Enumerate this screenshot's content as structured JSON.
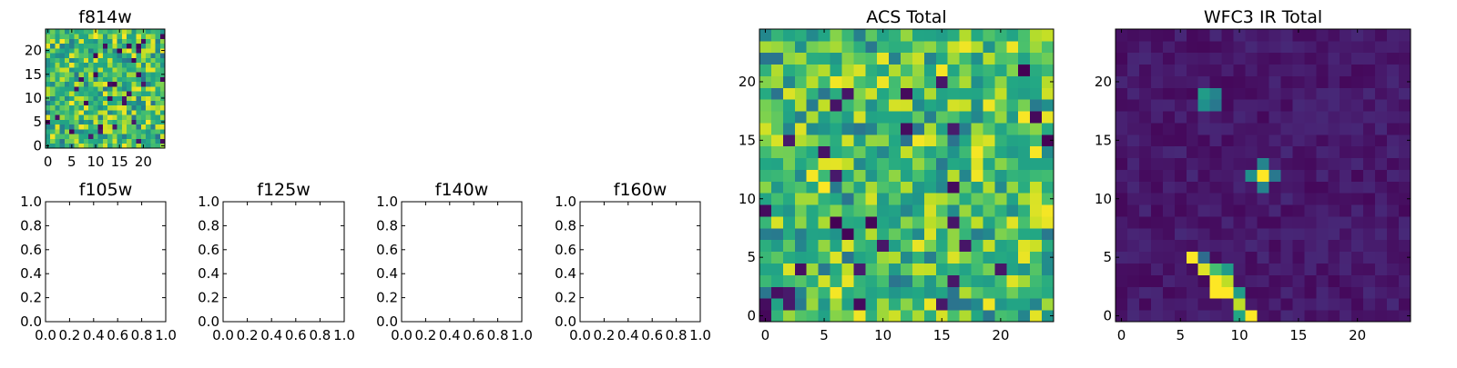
{
  "chart_data": [
    {
      "type": "heatmap",
      "id": "f814w",
      "title": "f814w",
      "xlabel": "",
      "ylabel": "",
      "xlim": [
        -0.5,
        24.5
      ],
      "ylim": [
        -0.5,
        24.5
      ],
      "xticks": [
        0,
        5,
        10,
        15,
        20
      ],
      "yticks": [
        0,
        5,
        10,
        15,
        20
      ],
      "xtick_labels": [
        "0",
        "5",
        "10",
        "15",
        "20"
      ],
      "ytick_labels": [
        "0",
        "5",
        "10",
        "15",
        "20"
      ],
      "grid": false,
      "colormap": "viridis",
      "rows": 25,
      "cols": 25,
      "values_note": "pseudo-random noise field, mostly green-yellow",
      "seed": 814,
      "mode": "noise"
    },
    {
      "type": "heatmap",
      "id": "f105w",
      "title": "f105w",
      "xlabel": "",
      "ylabel": "",
      "xlim": [
        0.0,
        1.0
      ],
      "ylim": [
        0.0,
        1.0
      ],
      "xtick_labels": [
        "0.0",
        "0.2",
        "0.4",
        "0.6",
        "0.8",
        "1.0"
      ],
      "ytick_labels": [
        "0.0",
        "0.2",
        "0.4",
        "0.6",
        "0.8",
        "1.0"
      ],
      "empty": true
    },
    {
      "type": "heatmap",
      "id": "f125w",
      "title": "f125w",
      "xlabel": "",
      "ylabel": "",
      "xlim": [
        0.0,
        1.0
      ],
      "ylim": [
        0.0,
        1.0
      ],
      "xtick_labels": [
        "0.0",
        "0.2",
        "0.4",
        "0.6",
        "0.8",
        "1.0"
      ],
      "ytick_labels": [
        "0.0",
        "0.2",
        "0.4",
        "0.6",
        "0.8",
        "1.0"
      ],
      "empty": true
    },
    {
      "type": "heatmap",
      "id": "f140w",
      "title": "f140w",
      "xlabel": "",
      "ylabel": "",
      "xlim": [
        0.0,
        1.0
      ],
      "ylim": [
        0.0,
        1.0
      ],
      "xtick_labels": [
        "0.0",
        "0.2",
        "0.4",
        "0.6",
        "0.8",
        "1.0"
      ],
      "ytick_labels": [
        "0.0",
        "0.2",
        "0.4",
        "0.6",
        "0.8",
        "1.0"
      ],
      "empty": true
    },
    {
      "type": "heatmap",
      "id": "f160w",
      "title": "f160w",
      "xlabel": "",
      "ylabel": "",
      "xlim": [
        0.0,
        1.0
      ],
      "ylim": [
        0.0,
        1.0
      ],
      "xtick_labels": [
        "0.0",
        "0.2",
        "0.4",
        "0.6",
        "0.8",
        "1.0"
      ],
      "ytick_labels": [
        "0.0",
        "0.2",
        "0.4",
        "0.6",
        "0.8",
        "1.0"
      ],
      "empty": true
    },
    {
      "type": "heatmap",
      "id": "acs-total",
      "title": "ACS Total",
      "xlabel": "",
      "ylabel": "",
      "xlim": [
        -0.5,
        24.5
      ],
      "ylim": [
        -0.5,
        24.5
      ],
      "xticks": [
        0,
        5,
        10,
        15,
        20
      ],
      "yticks": [
        0,
        5,
        10,
        15,
        20
      ],
      "xtick_labels": [
        "0",
        "5",
        "10",
        "15",
        "20"
      ],
      "ytick_labels": [
        "0",
        "5",
        "10",
        "15",
        "20"
      ],
      "grid": false,
      "colormap": "viridis",
      "rows": 25,
      "cols": 25,
      "values_note": "pseudo-random noise field, mostly green-yellow",
      "seed": 2017,
      "mode": "noise"
    },
    {
      "type": "heatmap",
      "id": "wfc3-ir-total",
      "title": "WFC3 IR Total",
      "xlabel": "",
      "ylabel": "",
      "xlim": [
        -0.5,
        24.5
      ],
      "ylim": [
        -0.5,
        24.5
      ],
      "xticks": [
        0,
        5,
        10,
        15,
        20
      ],
      "yticks": [
        0,
        5,
        10,
        15,
        20
      ],
      "xtick_labels": [
        "0",
        "5",
        "10",
        "15",
        "20"
      ],
      "ytick_labels": [
        "0",
        "5",
        "10",
        "15",
        "20"
      ],
      "grid": false,
      "colormap": "viridis",
      "rows": 25,
      "cols": 25,
      "values_note": "dark background with bright sources",
      "seed": 140,
      "mode": "sources",
      "sources": [
        {
          "x": 6,
          "y": 5,
          "v": 1.0
        },
        {
          "x": 7,
          "y": 4,
          "v": 0.95
        },
        {
          "x": 8,
          "y": 3,
          "v": 1.0
        },
        {
          "x": 8,
          "y": 2,
          "v": 1.0
        },
        {
          "x": 9,
          "y": 2,
          "v": 1.0
        },
        {
          "x": 9,
          "y": 3,
          "v": 0.9
        },
        {
          "x": 9,
          "y": 4,
          "v": 0.55
        },
        {
          "x": 8,
          "y": 4,
          "v": 0.7
        },
        {
          "x": 7,
          "y": 5,
          "v": 0.35
        },
        {
          "x": 10,
          "y": 1,
          "v": 0.9
        },
        {
          "x": 10,
          "y": 2,
          "v": 0.55
        },
        {
          "x": 11,
          "y": 0,
          "v": 1.0
        },
        {
          "x": 10,
          "y": 0,
          "v": 0.6
        },
        {
          "x": 12,
          "y": 12,
          "v": 1.0
        },
        {
          "x": 11,
          "y": 12,
          "v": 0.5
        },
        {
          "x": 12,
          "y": 13,
          "v": 0.45
        },
        {
          "x": 12,
          "y": 11,
          "v": 0.45
        },
        {
          "x": 13,
          "y": 12,
          "v": 0.4
        },
        {
          "x": 7,
          "y": 19,
          "v": 0.55
        },
        {
          "x": 7,
          "y": 18,
          "v": 0.5
        },
        {
          "x": 8,
          "y": 19,
          "v": 0.45
        },
        {
          "x": 8,
          "y": 18,
          "v": 0.4
        }
      ]
    }
  ]
}
